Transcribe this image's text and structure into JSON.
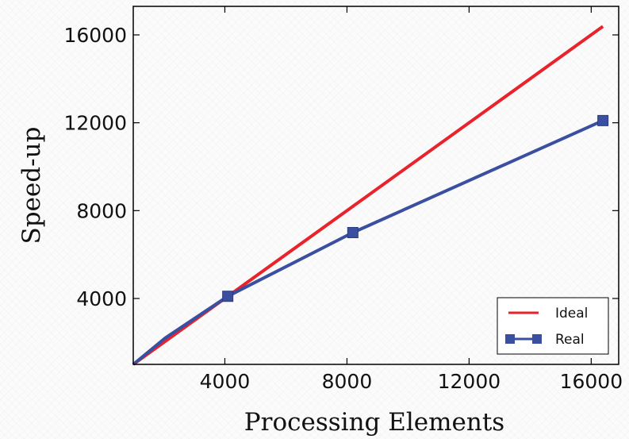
{
  "chart_data": {
    "type": "line",
    "xlabel": "Processing Elements",
    "ylabel": "Speed-up",
    "xlim": [
      1000,
      16900
    ],
    "ylim": [
      1000,
      17300
    ],
    "xticks": [
      4000,
      8000,
      12000,
      16000
    ],
    "yticks": [
      4000,
      8000,
      12000,
      16000
    ],
    "xtick_labels": [
      "4000",
      "8000",
      "12000",
      "16000"
    ],
    "ytick_labels": [
      "4000",
      "8000",
      "12000",
      "16000"
    ],
    "grid": false,
    "legend_position": "bottom-right",
    "series": [
      {
        "name": "Ideal",
        "color": "#e8232b",
        "marker": "none",
        "x": [
          1000,
          4096,
          16384
        ],
        "y": [
          1000,
          4096,
          16384
        ]
      },
      {
        "name": "Real",
        "color": "#3a4fa0",
        "marker": "square",
        "markers_at": [
          4096,
          8192,
          16384
        ],
        "x": [
          1000,
          2048,
          4096,
          8192,
          16384
        ],
        "y": [
          1000,
          2200,
          4100,
          7000,
          12100
        ]
      }
    ]
  }
}
